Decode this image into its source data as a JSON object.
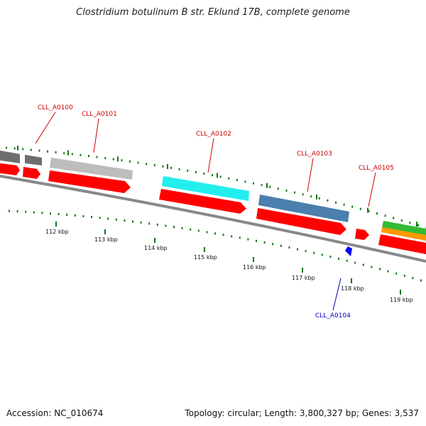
{
  "title": "Clostridium botulinum B str. Eklund 17B, complete genome",
  "footer": {
    "accession": "Accession: NC_010674",
    "summary": "Topology: circular; Length: 3,800,327 bp; Genes: 3,537"
  },
  "colors": {
    "forward_label": "#cc0000",
    "reverse_label": "#0000cc",
    "cds": "#ff0000",
    "backbone": "#888888",
    "tick": "#117711"
  },
  "axis": {
    "ticks": [
      {
        "kbp": 112,
        "label": "112 kbp"
      },
      {
        "kbp": 113,
        "label": "113 kbp"
      },
      {
        "kbp": 114,
        "label": "114 kbp"
      },
      {
        "kbp": 115,
        "label": "115 kbp"
      },
      {
        "kbp": 116,
        "label": "116 kbp"
      },
      {
        "kbp": 117,
        "label": "117 kbp"
      },
      {
        "kbp": 118,
        "label": "118 kbp"
      },
      {
        "kbp": 119,
        "label": "119 kbp"
      }
    ]
  },
  "genes": [
    {
      "id": "CLL_A0100",
      "label": "CLL_A0100",
      "strand": "+",
      "cog_color": "#6e6e6e"
    },
    {
      "id": "CLL_A0101",
      "label": "CLL_A0101",
      "strand": "+",
      "cog_color": "#bdbdbd"
    },
    {
      "id": "CLL_A0102",
      "label": "CLL_A0102",
      "strand": "+",
      "cog_color": "#22eeee"
    },
    {
      "id": "CLL_A0103",
      "label": "CLL_A0103",
      "strand": "+",
      "cog_color": "#4a7fae"
    },
    {
      "id": "CLL_A0104",
      "label": "CLL_A0104",
      "strand": "-",
      "cog_color": "#0000ff"
    },
    {
      "id": "CLL_A0105",
      "label": "CLL_A0105",
      "strand": "+",
      "cog_color": "#33bb33"
    }
  ]
}
